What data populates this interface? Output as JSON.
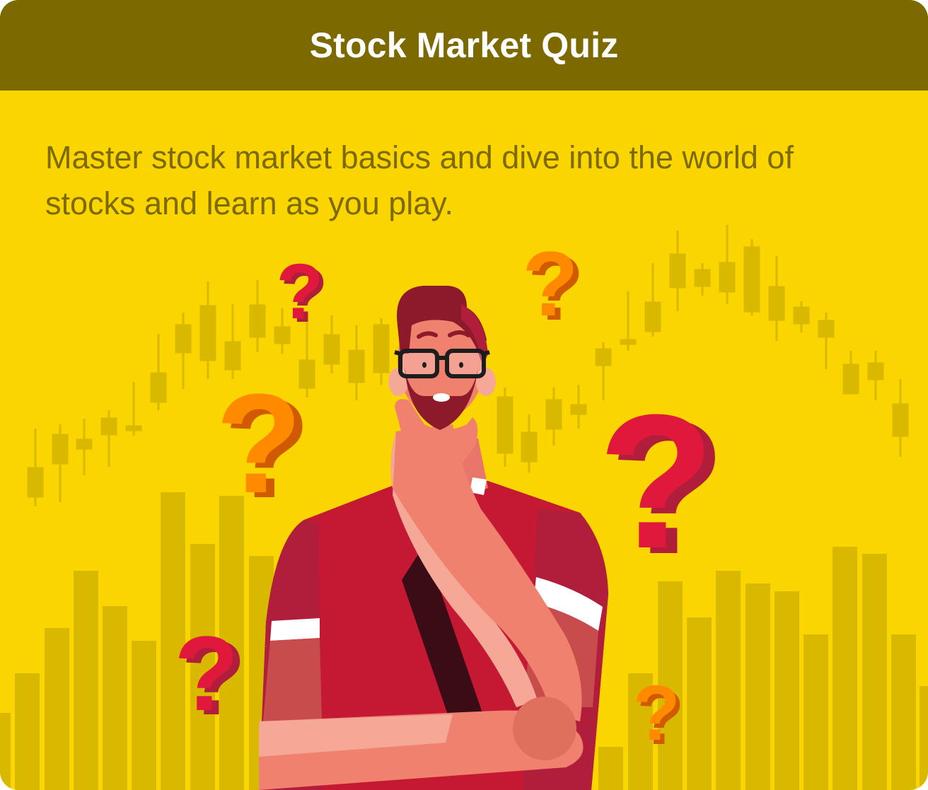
{
  "header": {
    "title": "Stock Market Quiz"
  },
  "main": {
    "description": "Master stock market basics and dive into the world of stocks and learn as you play."
  },
  "colors": {
    "header_bg": "#7c6900",
    "card_bg": "#fad500",
    "chart_shade": "#d9b800",
    "text": "#7c6900",
    "question_red": "#e0193c",
    "question_orange": "#ff8a00"
  },
  "illustration": {
    "icons": [
      "question-mark-icon",
      "thinking-man-illustration",
      "candlestick-chart-background",
      "bar-chart-background"
    ]
  }
}
